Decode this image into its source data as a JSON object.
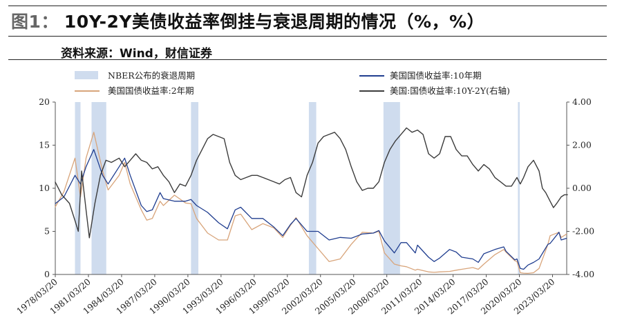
{
  "header": {
    "prefix": "图1：",
    "title": "10Y-2Y美债收益率倒挂与衰退周期的情况（%，%）",
    "source": "资料来源：Wind，财信证券"
  },
  "colors": {
    "us10y": "#1f3d8f",
    "us2y": "#d8a47a",
    "spread": "#3b3b3b",
    "recession": "#cfdcee"
  },
  "chart_data": {
    "type": "line",
    "title": "10Y-2Y美债收益率倒挂与衰退周期的情况（%，%）",
    "x_axis": {
      "start": "1978/03/20",
      "end": "2024/07/01",
      "tick_labels": [
        "1978/03/20",
        "1981/03/20",
        "1984/03/20",
        "1987/03/20",
        "1990/03/20",
        "1993/03/20",
        "1996/03/20",
        "1999/03/20",
        "2002/03/20",
        "2005/03/20",
        "2008/03/20",
        "2011/03/20",
        "2014/03/20",
        "2017/03/20",
        "2020/03/20",
        "2023/03/20"
      ]
    },
    "y_left": {
      "min": 0,
      "max": 20,
      "ticks": [
        "0",
        "5",
        "10",
        "15",
        "20"
      ]
    },
    "y_right": {
      "min": -4,
      "max": 4,
      "ticks": [
        "-4.00",
        "-2.00",
        "0.00",
        "2.00",
        "4.00"
      ]
    },
    "legend": [
      {
        "key": "recession",
        "label": "NBER公布的衰退周期"
      },
      {
        "key": "us10y",
        "label": "美国国债收益率:10年期"
      },
      {
        "key": "us2y",
        "label": "美国国债收益率:2年期"
      },
      {
        "key": "spread",
        "label": "美国:国债收益率:10Y-2Y(右轴)"
      }
    ],
    "recessions": [
      [
        "1980/01",
        "1980/07"
      ],
      [
        "1981/07",
        "1982/11"
      ],
      [
        "1990/07",
        "1991/03"
      ],
      [
        "2001/03",
        "2001/11"
      ],
      [
        "2007/12",
        "2009/06"
      ],
      [
        "2020/02",
        "2020/04"
      ]
    ],
    "series": [
      {
        "key": "us10y",
        "name": "美国国债收益率:10年期",
        "axis": "left",
        "x": [
          1978.2,
          1979.0,
          1980.0,
          1980.5,
          1981.0,
          1981.7,
          1982.5,
          1983.0,
          1984.0,
          1984.5,
          1985.0,
          1986.0,
          1986.5,
          1987.0,
          1987.7,
          1988.0,
          1989.0,
          1990.0,
          1990.5,
          1991.0,
          1992.0,
          1993.0,
          1993.8,
          1994.5,
          1995.0,
          1996.0,
          1997.0,
          1998.0,
          1998.8,
          1999.5,
          2000.0,
          2001.0,
          2002.0,
          2003.0,
          2004.0,
          2005.0,
          2006.0,
          2007.0,
          2007.5,
          2008.0,
          2008.9,
          2009.5,
          2010.0,
          2010.8,
          2011.0,
          2012.0,
          2012.5,
          2013.0,
          2013.9,
          2014.5,
          2015.0,
          2016.0,
          2016.5,
          2017.0,
          2018.0,
          2018.8,
          2019.0,
          2019.8,
          2020.0,
          2020.3,
          2020.6,
          2021.0,
          2021.5,
          2022.0,
          2022.8,
          2023.0,
          2023.8,
          2024.0,
          2024.5
        ],
        "values": [
          8.2,
          9.0,
          11.5,
          10.5,
          12.5,
          14.5,
          11.5,
          10.5,
          12.5,
          13.5,
          11.5,
          8.0,
          7.3,
          7.5,
          9.5,
          8.8,
          8.5,
          8.5,
          8.7,
          8.0,
          7.2,
          6.0,
          5.3,
          7.5,
          7.8,
          6.5,
          6.5,
          5.5,
          4.5,
          5.8,
          6.5,
          5.0,
          5.0,
          4.0,
          4.3,
          4.2,
          4.7,
          4.8,
          5.1,
          3.9,
          2.5,
          3.7,
          3.7,
          2.5,
          3.4,
          2.0,
          1.5,
          1.9,
          2.9,
          2.6,
          2.0,
          1.8,
          1.4,
          2.4,
          2.9,
          3.2,
          2.7,
          1.7,
          1.8,
          0.7,
          0.6,
          1.1,
          1.4,
          1.8,
          3.5,
          3.6,
          4.9,
          4.0,
          4.2
        ]
      },
      {
        "key": "us2y",
        "name": "美国国债收益率:2年期",
        "axis": "left",
        "x": [
          1978.2,
          1979.0,
          1980.0,
          1980.5,
          1981.0,
          1981.7,
          1982.5,
          1983.0,
          1984.0,
          1984.5,
          1985.0,
          1986.0,
          1986.5,
          1987.0,
          1987.7,
          1988.0,
          1989.0,
          1990.0,
          1990.5,
          1991.0,
          1992.0,
          1993.0,
          1993.8,
          1994.5,
          1995.0,
          1996.0,
          1997.0,
          1998.0,
          1998.8,
          1999.5,
          2000.0,
          2001.0,
          2002.0,
          2003.0,
          2004.0,
          2005.0,
          2006.0,
          2007.0,
          2007.5,
          2008.0,
          2008.9,
          2009.5,
          2010.0,
          2010.8,
          2011.0,
          2012.0,
          2012.5,
          2013.0,
          2013.9,
          2014.5,
          2015.0,
          2016.0,
          2016.5,
          2017.0,
          2018.0,
          2018.8,
          2019.0,
          2019.8,
          2020.0,
          2020.3,
          2020.6,
          2021.0,
          2021.5,
          2022.0,
          2022.8,
          2023.0,
          2023.8,
          2024.0,
          2024.5
        ],
        "values": [
          7.8,
          9.6,
          13.5,
          9.0,
          13.5,
          16.5,
          12.0,
          9.8,
          11.5,
          13.0,
          10.5,
          7.5,
          6.3,
          6.5,
          8.5,
          8.0,
          9.2,
          8.3,
          8.2,
          6.5,
          4.8,
          4.0,
          4.0,
          6.8,
          7.0,
          5.2,
          5.9,
          5.4,
          4.3,
          5.7,
          6.6,
          4.5,
          3.0,
          1.5,
          1.8,
          3.5,
          4.9,
          4.8,
          5.0,
          2.5,
          1.2,
          1.0,
          0.9,
          0.5,
          0.6,
          0.3,
          0.25,
          0.3,
          0.35,
          0.5,
          0.6,
          0.8,
          0.6,
          1.2,
          2.3,
          2.9,
          2.6,
          1.6,
          1.5,
          0.2,
          0.15,
          0.13,
          0.2,
          0.7,
          3.5,
          4.5,
          4.9,
          4.3,
          4.7
        ]
      },
      {
        "key": "spread",
        "name": "美国:国债收益率:10Y-2Y(右轴)",
        "axis": "right",
        "x": [
          1978.2,
          1978.8,
          1979.5,
          1980.0,
          1980.3,
          1980.6,
          1981.0,
          1981.3,
          1981.8,
          1982.3,
          1982.8,
          1983.3,
          1984.0,
          1984.5,
          1985.0,
          1985.5,
          1986.0,
          1986.5,
          1987.0,
          1987.5,
          1988.0,
          1988.5,
          1989.0,
          1989.5,
          1990.0,
          1990.5,
          1991.0,
          1991.5,
          1992.0,
          1992.5,
          1993.0,
          1993.5,
          1994.0,
          1994.5,
          1995.0,
          1995.5,
          1996.0,
          1996.5,
          1997.0,
          1998.0,
          1998.5,
          1999.0,
          1999.5,
          2000.0,
          2000.5,
          2001.0,
          2001.5,
          2002.0,
          2002.5,
          2003.0,
          2003.5,
          2004.0,
          2004.5,
          2005.0,
          2005.5,
          2006.0,
          2006.5,
          2007.0,
          2007.5,
          2008.0,
          2008.5,
          2009.0,
          2009.5,
          2010.0,
          2010.5,
          2011.0,
          2011.5,
          2012.0,
          2012.5,
          2013.0,
          2013.5,
          2014.0,
          2014.5,
          2015.0,
          2015.5,
          2016.0,
          2016.5,
          2017.0,
          2017.5,
          2018.0,
          2018.5,
          2019.0,
          2019.5,
          2020.0,
          2020.3,
          2020.6,
          2021.0,
          2021.5,
          2022.0,
          2022.3,
          2022.6,
          2023.0,
          2023.3,
          2023.6,
          2024.0,
          2024.3,
          2024.6
        ],
        "values": [
          0.3,
          -0.3,
          -0.7,
          -1.5,
          -2.0,
          0.8,
          -1.0,
          -2.3,
          -0.7,
          0.6,
          1.3,
          1.2,
          1.4,
          1.0,
          1.3,
          1.6,
          1.3,
          1.2,
          0.9,
          1.0,
          0.6,
          0.3,
          -0.2,
          0.2,
          0.1,
          0.6,
          1.3,
          1.8,
          2.3,
          2.5,
          2.4,
          2.3,
          1.2,
          0.6,
          0.4,
          0.5,
          0.6,
          0.6,
          0.5,
          0.3,
          0.2,
          0.4,
          0.5,
          -0.2,
          -0.4,
          0.6,
          1.2,
          2.1,
          2.4,
          2.5,
          2.6,
          2.3,
          1.8,
          1.0,
          0.3,
          -0.1,
          0.0,
          0.0,
          0.3,
          1.2,
          1.8,
          2.2,
          2.5,
          2.8,
          2.6,
          2.7,
          2.5,
          1.6,
          1.4,
          1.6,
          2.4,
          2.4,
          1.8,
          1.5,
          1.5,
          1.1,
          0.8,
          1.1,
          0.9,
          0.5,
          0.3,
          0.1,
          0.1,
          0.5,
          0.2,
          0.5,
          1.0,
          1.3,
          0.8,
          0.0,
          -0.2,
          -0.6,
          -0.9,
          -0.7,
          -0.4,
          -0.3,
          -0.3
        ]
      }
    ]
  }
}
